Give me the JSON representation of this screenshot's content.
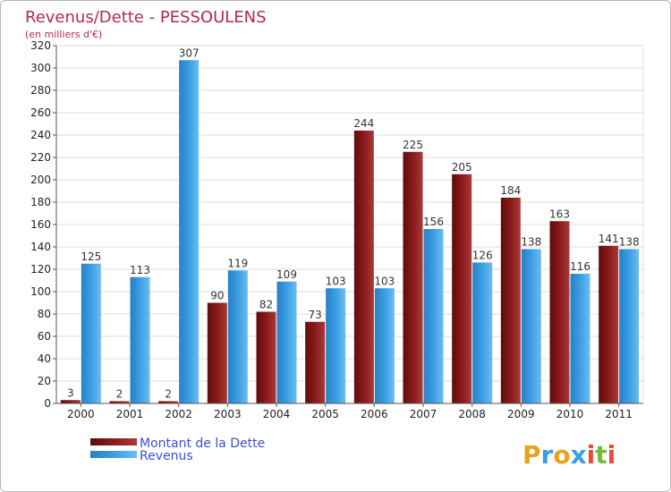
{
  "chart_data": {
    "type": "bar",
    "title": "Revenus/Dette - PESSOULENS",
    "subtitle": "(en milliers d'€)",
    "categories": [
      "2000",
      "2001",
      "2002",
      "2003",
      "2004",
      "2005",
      "2006",
      "2007",
      "2008",
      "2009",
      "2010",
      "2011"
    ],
    "series": [
      {
        "name": "Montant de la Dette",
        "color": "#8b1a1a",
        "values": [
          3,
          2,
          2,
          90,
          82,
          73,
          244,
          225,
          205,
          184,
          163,
          141
        ]
      },
      {
        "name": "Revenus",
        "color": "#3a9ee4",
        "values": [
          125,
          113,
          307,
          119,
          109,
          103,
          103,
          156,
          126,
          138,
          116,
          138
        ]
      }
    ],
    "ylim": [
      0,
      320
    ],
    "yticks": [
      0,
      20,
      40,
      60,
      80,
      100,
      120,
      140,
      160,
      180,
      200,
      220,
      240,
      260,
      280,
      300,
      320
    ],
    "grid": true,
    "legend": "bottom-left"
  },
  "logo": {
    "letters": [
      "P",
      "r",
      "o",
      "x",
      "i",
      "t",
      "i"
    ],
    "colors": [
      "#e8a21c",
      "#3a9ee4",
      "#e8a21c",
      "#3a9ee4",
      "#e84a3c",
      "#7ab83c",
      "#e84a3c"
    ]
  }
}
